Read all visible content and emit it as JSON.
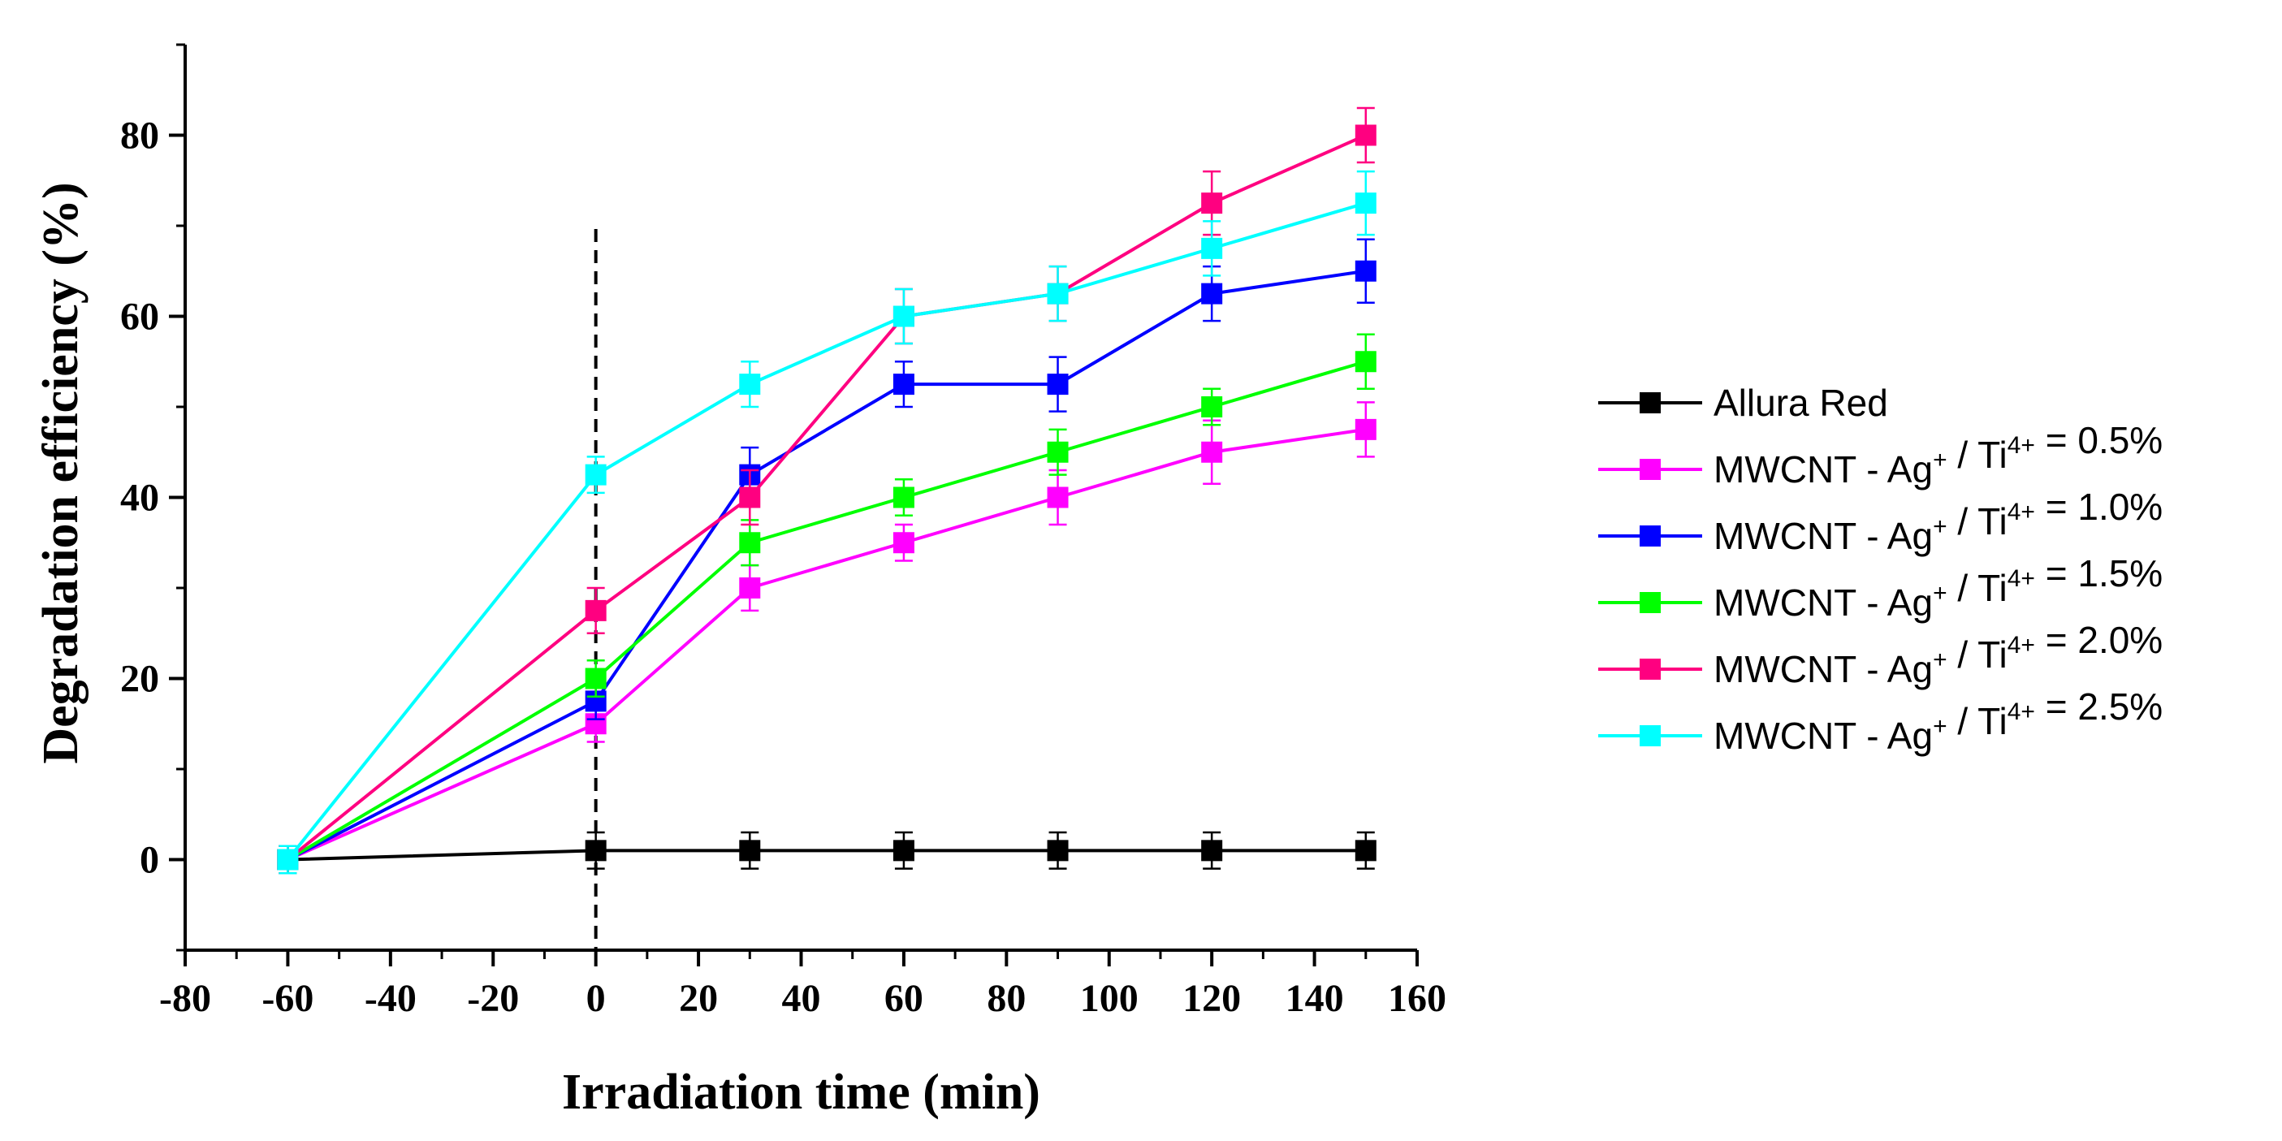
{
  "chart_data": {
    "type": "line",
    "xlabel": "Irradiation time  (min)",
    "ylabel": "Degradation efficiency  (%)",
    "xlim": [
      -80,
      160
    ],
    "ylim": [
      -10,
      90
    ],
    "xticks": [
      -80,
      -60,
      -40,
      -20,
      0,
      20,
      40,
      60,
      80,
      100,
      120,
      140,
      160
    ],
    "yticks": [
      0,
      20,
      40,
      60,
      80
    ],
    "xtick_labels": [
      "-80",
      "-60",
      "-40",
      "-20",
      "0",
      "20",
      "40",
      "60",
      "80",
      "100",
      "120",
      "140",
      "160"
    ],
    "ytick_labels": [
      "0",
      "20",
      "40",
      "60",
      "80"
    ],
    "vline_x": 0,
    "legend_position": "right",
    "x": [
      -60,
      0,
      30,
      60,
      90,
      120,
      150
    ],
    "series": [
      {
        "name": "Allura Red",
        "color": "#000000",
        "values": [
          0,
          1,
          1,
          1,
          1,
          1,
          1
        ],
        "errors": [
          1.5,
          2,
          2,
          2,
          2,
          2,
          2
        ]
      },
      {
        "name": "MWCNT - Ag+ / Ti4+ = 0.5%",
        "color": "#ff00ff",
        "values": [
          0,
          15,
          30,
          35,
          40,
          45,
          47.5
        ],
        "errors": [
          1.5,
          2,
          2.5,
          2,
          3,
          3.5,
          3
        ]
      },
      {
        "name": "MWCNT - Ag+ / Ti4+ = 1.0%",
        "color": "#0000ff",
        "values": [
          0,
          17.5,
          42.5,
          52.5,
          52.5,
          62.5,
          65
        ],
        "errors": [
          1.5,
          2,
          3,
          2.5,
          3,
          3,
          3.5
        ]
      },
      {
        "name": "MWCNT - Ag+ / Ti4+ = 1.5%",
        "color": "#00ff00",
        "values": [
          0,
          20,
          35,
          40,
          45,
          50,
          55
        ],
        "errors": [
          1.5,
          2,
          2.5,
          2,
          2.5,
          2,
          3
        ]
      },
      {
        "name": "MWCNT - Ag+ / Ti4+ = 2.0%",
        "color": "#ff0080",
        "values": [
          0,
          27.5,
          40,
          60,
          62.5,
          72.5,
          80
        ],
        "errors": [
          1.5,
          2.5,
          3,
          3,
          3,
          3.5,
          3
        ]
      },
      {
        "name": "MWCNT - Ag+ / Ti4+ = 2.5%",
        "color": "#00ffff",
        "values": [
          0,
          42.5,
          52.5,
          60,
          62.5,
          67.5,
          72.5
        ],
        "errors": [
          1.5,
          2,
          2.5,
          3,
          3,
          3,
          3.5
        ]
      }
    ],
    "legend": [
      {
        "base": "Allura Red",
        "sup1": "",
        "mid": "",
        "sup2": "",
        "tail": ""
      },
      {
        "base": "MWCNT - Ag",
        "sup1": "+",
        "mid": " / Ti",
        "sup2": "4+",
        "tail": " = 0.5%"
      },
      {
        "base": "MWCNT - Ag",
        "sup1": "+",
        "mid": " / Ti",
        "sup2": "4+",
        "tail": " = 1.0%"
      },
      {
        "base": "MWCNT - Ag",
        "sup1": "+",
        "mid": " / Ti",
        "sup2": "4+",
        "tail": " = 1.5%"
      },
      {
        "base": "MWCNT - Ag",
        "sup1": "+",
        "mid": " / Ti",
        "sup2": "4+",
        "tail": " = 2.0%"
      },
      {
        "base": "MWCNT - Ag",
        "sup1": "+",
        "mid": " / Ti",
        "sup2": "4+",
        "tail": " = 2.5%"
      }
    ]
  }
}
